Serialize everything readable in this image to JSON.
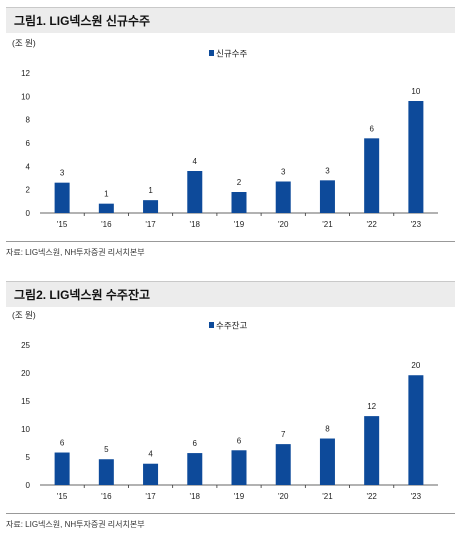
{
  "chart_data": [
    {
      "type": "bar",
      "title": "그림1. LIG넥스원 신규수주",
      "unit_label": "(조 원)",
      "legend": [
        "신규수주"
      ],
      "categories": [
        "'15",
        "'16",
        "'17",
        "'18",
        "'19",
        "'20",
        "'21",
        "'22",
        "'23"
      ],
      "series": [
        {
          "name": "신규수주",
          "values": [
            2.6,
            0.8,
            1.1,
            3.6,
            1.8,
            2.7,
            2.8,
            6.4,
            9.6
          ]
        }
      ],
      "data_labels": [
        "3",
        "1",
        "1",
        "4",
        "2",
        "3",
        "3",
        "6",
        "10"
      ],
      "ylim": [
        0,
        12
      ],
      "yticks": [
        0,
        2,
        4,
        6,
        8,
        10,
        12
      ],
      "bar_color": "#0d4a9a",
      "legend_position": "top-center",
      "source": "자료: LIG넥스원, NH투자증권 리서치본부"
    },
    {
      "type": "bar",
      "title": "그림2. LIG넥스원 수주잔고",
      "unit_label": "(조 원)",
      "legend": [
        "수주잔고"
      ],
      "categories": [
        "'15",
        "'16",
        "'17",
        "'18",
        "'19",
        "'20",
        "'21",
        "'22",
        "'23"
      ],
      "series": [
        {
          "name": "수주잔고",
          "values": [
            5.8,
            4.6,
            3.8,
            5.7,
            6.2,
            7.3,
            8.3,
            12.3,
            19.6
          ]
        }
      ],
      "data_labels": [
        "6",
        "5",
        "4",
        "6",
        "6",
        "7",
        "8",
        "12",
        "20"
      ],
      "ylim": [
        0,
        25
      ],
      "yticks": [
        0,
        5,
        10,
        15,
        20,
        25
      ],
      "bar_color": "#0d4a9a",
      "legend_position": "top-center",
      "source": "자료: LIG넥스원, NH투자증권 리서치본부"
    }
  ]
}
